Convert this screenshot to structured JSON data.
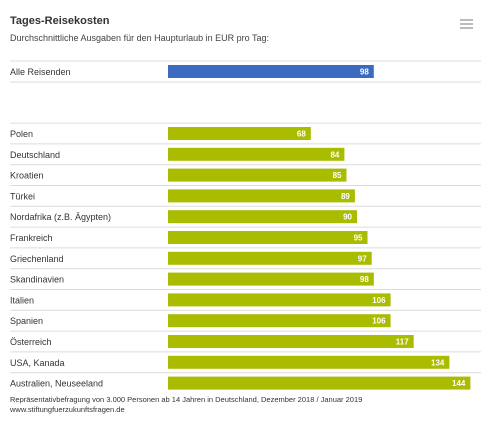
{
  "header": {
    "title": "Tages-Reisekosten",
    "subtitle": "Durchschnittliche Ausgaben für den Haupturlaub in EUR pro Tag:"
  },
  "menu": {
    "icon": "hamburger-menu-icon"
  },
  "colors": {
    "highlight": "#3a6bc1",
    "bars": "#a9bc00",
    "divider": "#dcdcdc"
  },
  "chart_data": {
    "type": "bar",
    "orientation": "horizontal",
    "title": "Tages-Reisekosten",
    "subtitle": "Durchschnittliche Ausgaben für den Haupturlaub in EUR pro Tag:",
    "xlim": [
      0,
      150
    ],
    "data_labels": true,
    "grid": false,
    "highlight": {
      "label": "Alle Reisenden",
      "value": 98
    },
    "categories": [
      "Polen",
      "Deutschland",
      "Kroatien",
      "Türkei",
      "Nordafrika (z.B. Ägypten)",
      "Frankreich",
      "Griechenland",
      "Skandinavien",
      "Italien",
      "Spanien",
      "Österreich",
      "USA, Kanada",
      "Australien, Neuseeland"
    ],
    "values": [
      68,
      84,
      85,
      89,
      90,
      95,
      97,
      98,
      106,
      106,
      117,
      134,
      144
    ]
  },
  "footer": {
    "source": "Repräsentativbefragung von 3.000 Personen ab 14 Jahren in Deutschland, Dezember 2018 / Januar 2019",
    "website": "www.stiftungfuerzukunftsfragen.de"
  }
}
